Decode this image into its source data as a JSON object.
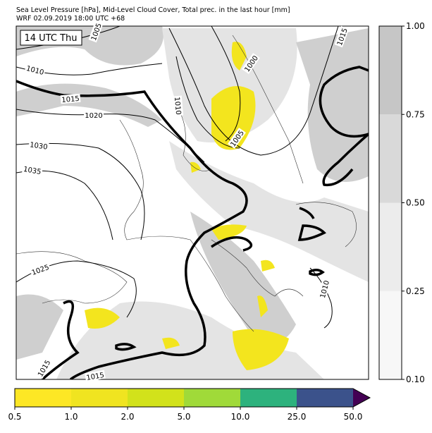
{
  "header": {
    "title": "Sea Level Pressure [hPa], Mid-Level Cloud Cover, Total prec. in the last hour [mm]",
    "subtitle": "WRF 02.09.2019 18:00 UTC +68"
  },
  "map": {
    "time_label": "14 UTC Thu",
    "isobar_labels": [
      "1005",
      "1010",
      "1015",
      "1020",
      "1030",
      "1035",
      "1025",
      "1000",
      "1015",
      "1010",
      "1005",
      "1010",
      "1015",
      "1015"
    ]
  },
  "cloud_colorbar": {
    "ticks": [
      {
        "value": 0.1,
        "label": "0.10"
      },
      0.25,
      {
        "value": 0.5,
        "label": "0.50"
      },
      0.75,
      {
        "value": 1,
        "label": "1.00"
      }
    ],
    "colors": [
      "#f7f7f7",
      "#ececec",
      "#d9d9d9",
      "#c6c6c6"
    ]
  },
  "precip_colorbar": {
    "ticks": [
      0.5,
      {
        "value": 1,
        "label": "1.0"
      },
      {
        "value": 2,
        "label": "2.0"
      },
      {
        "value": 5,
        "label": "5.0"
      },
      {
        "value": 10,
        "label": "10.0"
      },
      {
        "value": 25,
        "label": "25.0"
      },
      {
        "value": 50,
        "label": "50.0"
      }
    ],
    "colors": [
      "#fde725",
      "#f0e420",
      "#d2e21b",
      "#a0da39",
      "#2db27d",
      "#3b528b"
    ],
    "extend_color": "#440154"
  }
}
